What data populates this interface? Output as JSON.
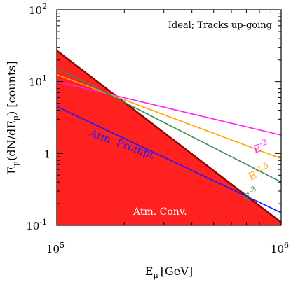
{
  "chart_data": {
    "type": "line",
    "title": "",
    "annotation": "Ideal; Tracks up-going",
    "xlabel_main": "E",
    "xlabel_sub": "μ",
    "xlabel_unit": "[GeV]",
    "ylabel_pre": "E",
    "ylabel_sub1": "μ",
    "ylabel_mid": "(dN/dE",
    "ylabel_sub2": "μ",
    "ylabel_post": ") [counts]",
    "xscale": "log",
    "yscale": "log",
    "xlim": [
      100000,
      1000000
    ],
    "ylim": [
      0.1,
      100
    ],
    "x_ticks": [
      {
        "base": "10",
        "exp": "5"
      },
      {
        "base": "10",
        "exp": "6"
      }
    ],
    "y_ticks": [
      {
        "base": "10",
        "exp": "-1"
      },
      {
        "base": "1",
        "exp": ""
      },
      {
        "base": "10",
        "exp": "1"
      },
      {
        "base": "10",
        "exp": "2"
      }
    ],
    "series": [
      {
        "name": "Atm. Conv.",
        "color": "#ff2020",
        "fill": true,
        "x": [
          100000,
          1000000
        ],
        "y": [
          27,
          0.11
        ]
      },
      {
        "name": "Atm. Prompt",
        "color": "#1a1aff",
        "x": [
          100000,
          1000000
        ],
        "y": [
          4.5,
          0.15
        ]
      },
      {
        "name": "E",
        "superscript": "-2",
        "color": "#ff22ff",
        "x": [
          100000,
          1000000
        ],
        "y": [
          10.0,
          1.8
        ]
      },
      {
        "name": "E",
        "superscript": "-2.5",
        "color": "#ffa500",
        "x": [
          100000,
          1000000
        ],
        "y": [
          12.5,
          0.85
        ]
      },
      {
        "name": "E",
        "superscript": "-3",
        "color": "#3a8a5a",
        "x": [
          100000,
          1000000
        ],
        "y": [
          15.5,
          0.4
        ]
      }
    ]
  }
}
